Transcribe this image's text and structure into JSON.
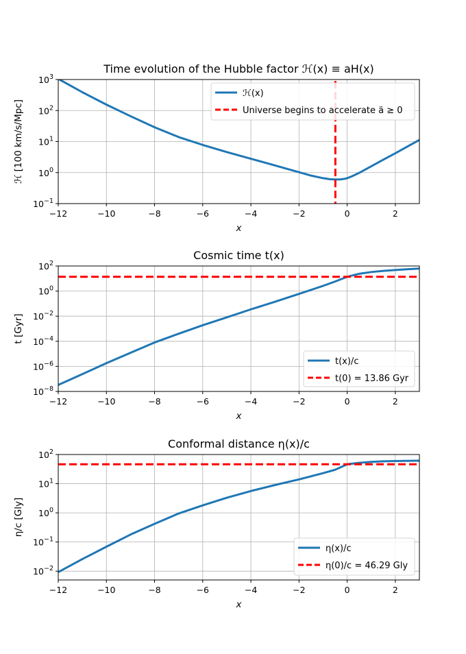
{
  "chart_data": [
    {
      "type": "line",
      "title": "Time evolution of the Hubble factor ℋ(x) ≡ aH(x)",
      "xlabel": "x",
      "ylabel": "ℋ [100 km/s/Mpc]",
      "xlim": [
        -12,
        3
      ],
      "ylim": [
        0.1,
        1000
      ],
      "yscale": "log",
      "grid": true,
      "legend": "top-right",
      "xticks": [
        -12,
        -10,
        -8,
        -6,
        -4,
        -2,
        0,
        2
      ],
      "xtick_labels": [
        "−12",
        "−10",
        "−8",
        "−6",
        "−4",
        "−2",
        "0",
        "2"
      ],
      "yticks": [
        0.1,
        1,
        10,
        100,
        1000
      ],
      "ytick_labels": [
        {
          "base": "10",
          "exp": "−1"
        },
        {
          "base": "10",
          "exp": "0"
        },
        {
          "base": "10",
          "exp": "1"
        },
        {
          "base": "10",
          "exp": "2"
        },
        {
          "base": "10",
          "exp": "3"
        }
      ],
      "series": [
        {
          "name": "ℋ(x)",
          "color": "#1f77b4",
          "style": "solid",
          "x": [
            -12,
            -11,
            -10,
            -9,
            -8,
            -7,
            -6,
            -5,
            -4,
            -3,
            -2,
            -1.5,
            -1,
            -0.7,
            -0.5,
            -0.3,
            -0.1,
            0,
            0.2,
            0.5,
            1,
            1.5,
            2,
            2.5,
            3
          ],
          "y": [
            1050,
            390,
            155,
            66,
            29,
            14,
            7.8,
            4.6,
            2.8,
            1.7,
            1.03,
            0.8,
            0.66,
            0.61,
            0.6,
            0.6,
            0.63,
            0.66,
            0.76,
            0.98,
            1.6,
            2.6,
            4.2,
            6.9,
            11.3
          ]
        },
        {
          "name": "Universe begins to accelerate ä ≥ 0",
          "color": "#ff0000",
          "style": "dashed",
          "orientation": "vertical",
          "x_value": -0.49,
          "y_range": [
            0.1,
            900
          ]
        }
      ]
    },
    {
      "type": "line",
      "title": "Cosmic time t(x)",
      "xlabel": "x",
      "ylabel": "t [Gyr]",
      "xlim": [
        -12,
        3
      ],
      "ylim": [
        1e-08,
        100
      ],
      "yscale": "log",
      "grid": true,
      "legend": "bottom-right",
      "xticks": [
        -12,
        -10,
        -8,
        -6,
        -4,
        -2,
        0,
        2
      ],
      "xtick_labels": [
        "−12",
        "−10",
        "−8",
        "−6",
        "−4",
        "−2",
        "0",
        "2"
      ],
      "yticks": [
        1e-08,
        1e-06,
        0.0001,
        0.01,
        1,
        100
      ],
      "ytick_labels": [
        {
          "base": "10",
          "exp": "−8"
        },
        {
          "base": "10",
          "exp": "−6"
        },
        {
          "base": "10",
          "exp": "−4"
        },
        {
          "base": "10",
          "exp": "−2"
        },
        {
          "base": "10",
          "exp": "0"
        },
        {
          "base": "10",
          "exp": "2"
        }
      ],
      "series": [
        {
          "name": "t(x)/c",
          "color": "#1f77b4",
          "style": "solid",
          "x": [
            -12,
            -11,
            -10,
            -9,
            -8,
            -7,
            -6,
            -5,
            -4,
            -3,
            -2,
            -1,
            -0.5,
            0,
            0.5,
            1,
            1.5,
            2,
            2.5,
            3
          ],
          "y": [
            3.3e-08,
            2.4e-07,
            1.8e-06,
            1.2e-05,
            8e-05,
            0.0004,
            0.0019,
            0.008,
            0.035,
            0.14,
            0.6,
            2.6,
            5.8,
            13.86,
            24,
            33,
            41,
            48,
            55,
            62
          ]
        },
        {
          "name": "t(0) = 13.86 Gyr",
          "color": "#ff0000",
          "style": "dashed",
          "orientation": "horizontal",
          "y_value": 13.86
        }
      ]
    },
    {
      "type": "line",
      "title": "Conformal distance η(x)/c",
      "xlabel": "x",
      "ylabel": "η/c [Gly]",
      "xlim": [
        -12,
        3
      ],
      "ylim": [
        0.005,
        100
      ],
      "yscale": "log",
      "grid": true,
      "legend": "bottom-right",
      "xticks": [
        -12,
        -10,
        -8,
        -6,
        -4,
        -2,
        0,
        2
      ],
      "xtick_labels": [
        "−12",
        "−10",
        "−8",
        "−6",
        "−4",
        "−2",
        "0",
        "2"
      ],
      "yticks": [
        0.01,
        0.1,
        1,
        10,
        100
      ],
      "ytick_labels": [
        {
          "base": "10",
          "exp": "−2"
        },
        {
          "base": "10",
          "exp": "−1"
        },
        {
          "base": "10",
          "exp": "0"
        },
        {
          "base": "10",
          "exp": "1"
        },
        {
          "base": "10",
          "exp": "2"
        }
      ],
      "series": [
        {
          "name": "η(x)/c",
          "color": "#1f77b4",
          "style": "solid",
          "x": [
            -12,
            -11,
            -10,
            -9,
            -8,
            -7,
            -6,
            -5,
            -4,
            -3,
            -2,
            -1,
            -0.5,
            0,
            0.5,
            1,
            1.5,
            2,
            2.5,
            3
          ],
          "y": [
            0.0093,
            0.026,
            0.069,
            0.18,
            0.42,
            0.95,
            1.8,
            3.3,
            5.6,
            9.0,
            14,
            23,
            30,
            46.29,
            52,
            56,
            58.5,
            60,
            60.8,
            61.3
          ]
        },
        {
          "name": "η(0)/c = 46.29 Gly",
          "color": "#ff0000",
          "style": "dashed",
          "orientation": "horizontal",
          "y_value": 46.29
        }
      ]
    }
  ]
}
